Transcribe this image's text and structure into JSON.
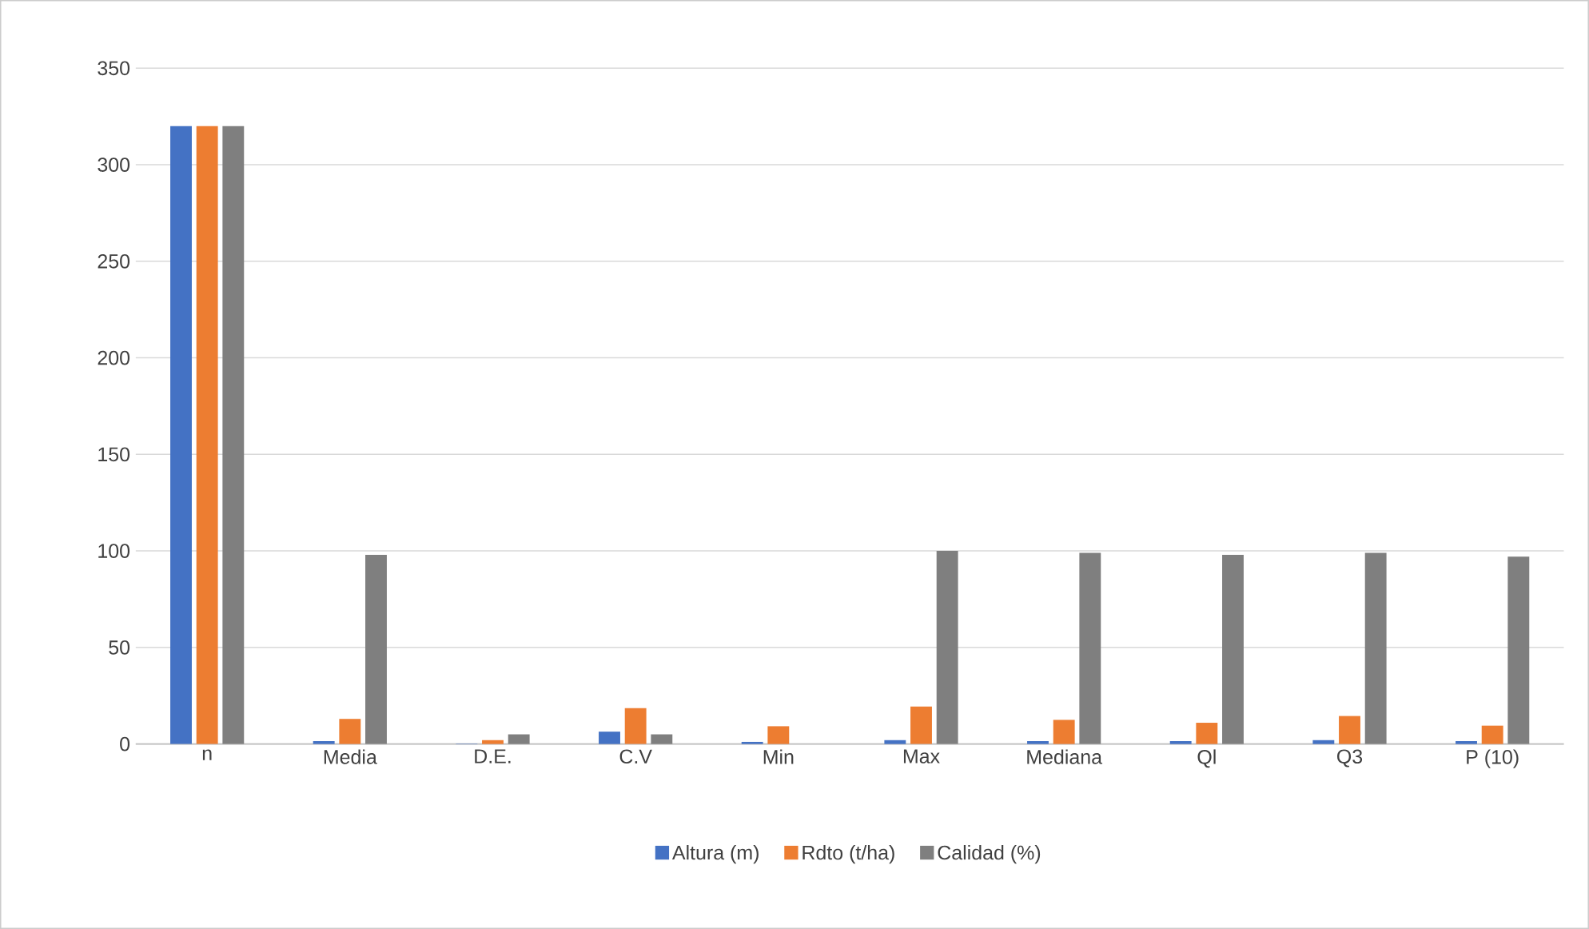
{
  "chart_data": {
    "type": "bar",
    "categories": [
      "n",
      "Media",
      "D.E.",
      "C.V",
      "Min",
      "Max",
      "Mediana",
      "Ql",
      "Q3",
      "P (10)"
    ],
    "series": [
      {
        "name": "Altura (m)",
        "color": "#4472c4",
        "values": [
          320,
          1.5,
          0.2,
          6.4,
          1.1,
          2,
          1.5,
          1.5,
          2,
          1.5
        ]
      },
      {
        "name": "Rdto (t/ha)",
        "color": "#ed7d31",
        "values": [
          320,
          13,
          2,
          18.6,
          9.2,
          19.4,
          12.5,
          11,
          14.5,
          9.5
        ]
      },
      {
        "name": "Calidad (%)",
        "color": "#7f7f7f",
        "values": [
          320,
          98,
          5,
          5,
          0,
          100,
          99,
          98,
          99,
          97
        ]
      }
    ],
    "ylim": [
      0,
      350
    ],
    "yticks": [
      0,
      50,
      100,
      150,
      200,
      250,
      300,
      350
    ],
    "grid": "y",
    "legend": "bottom"
  }
}
